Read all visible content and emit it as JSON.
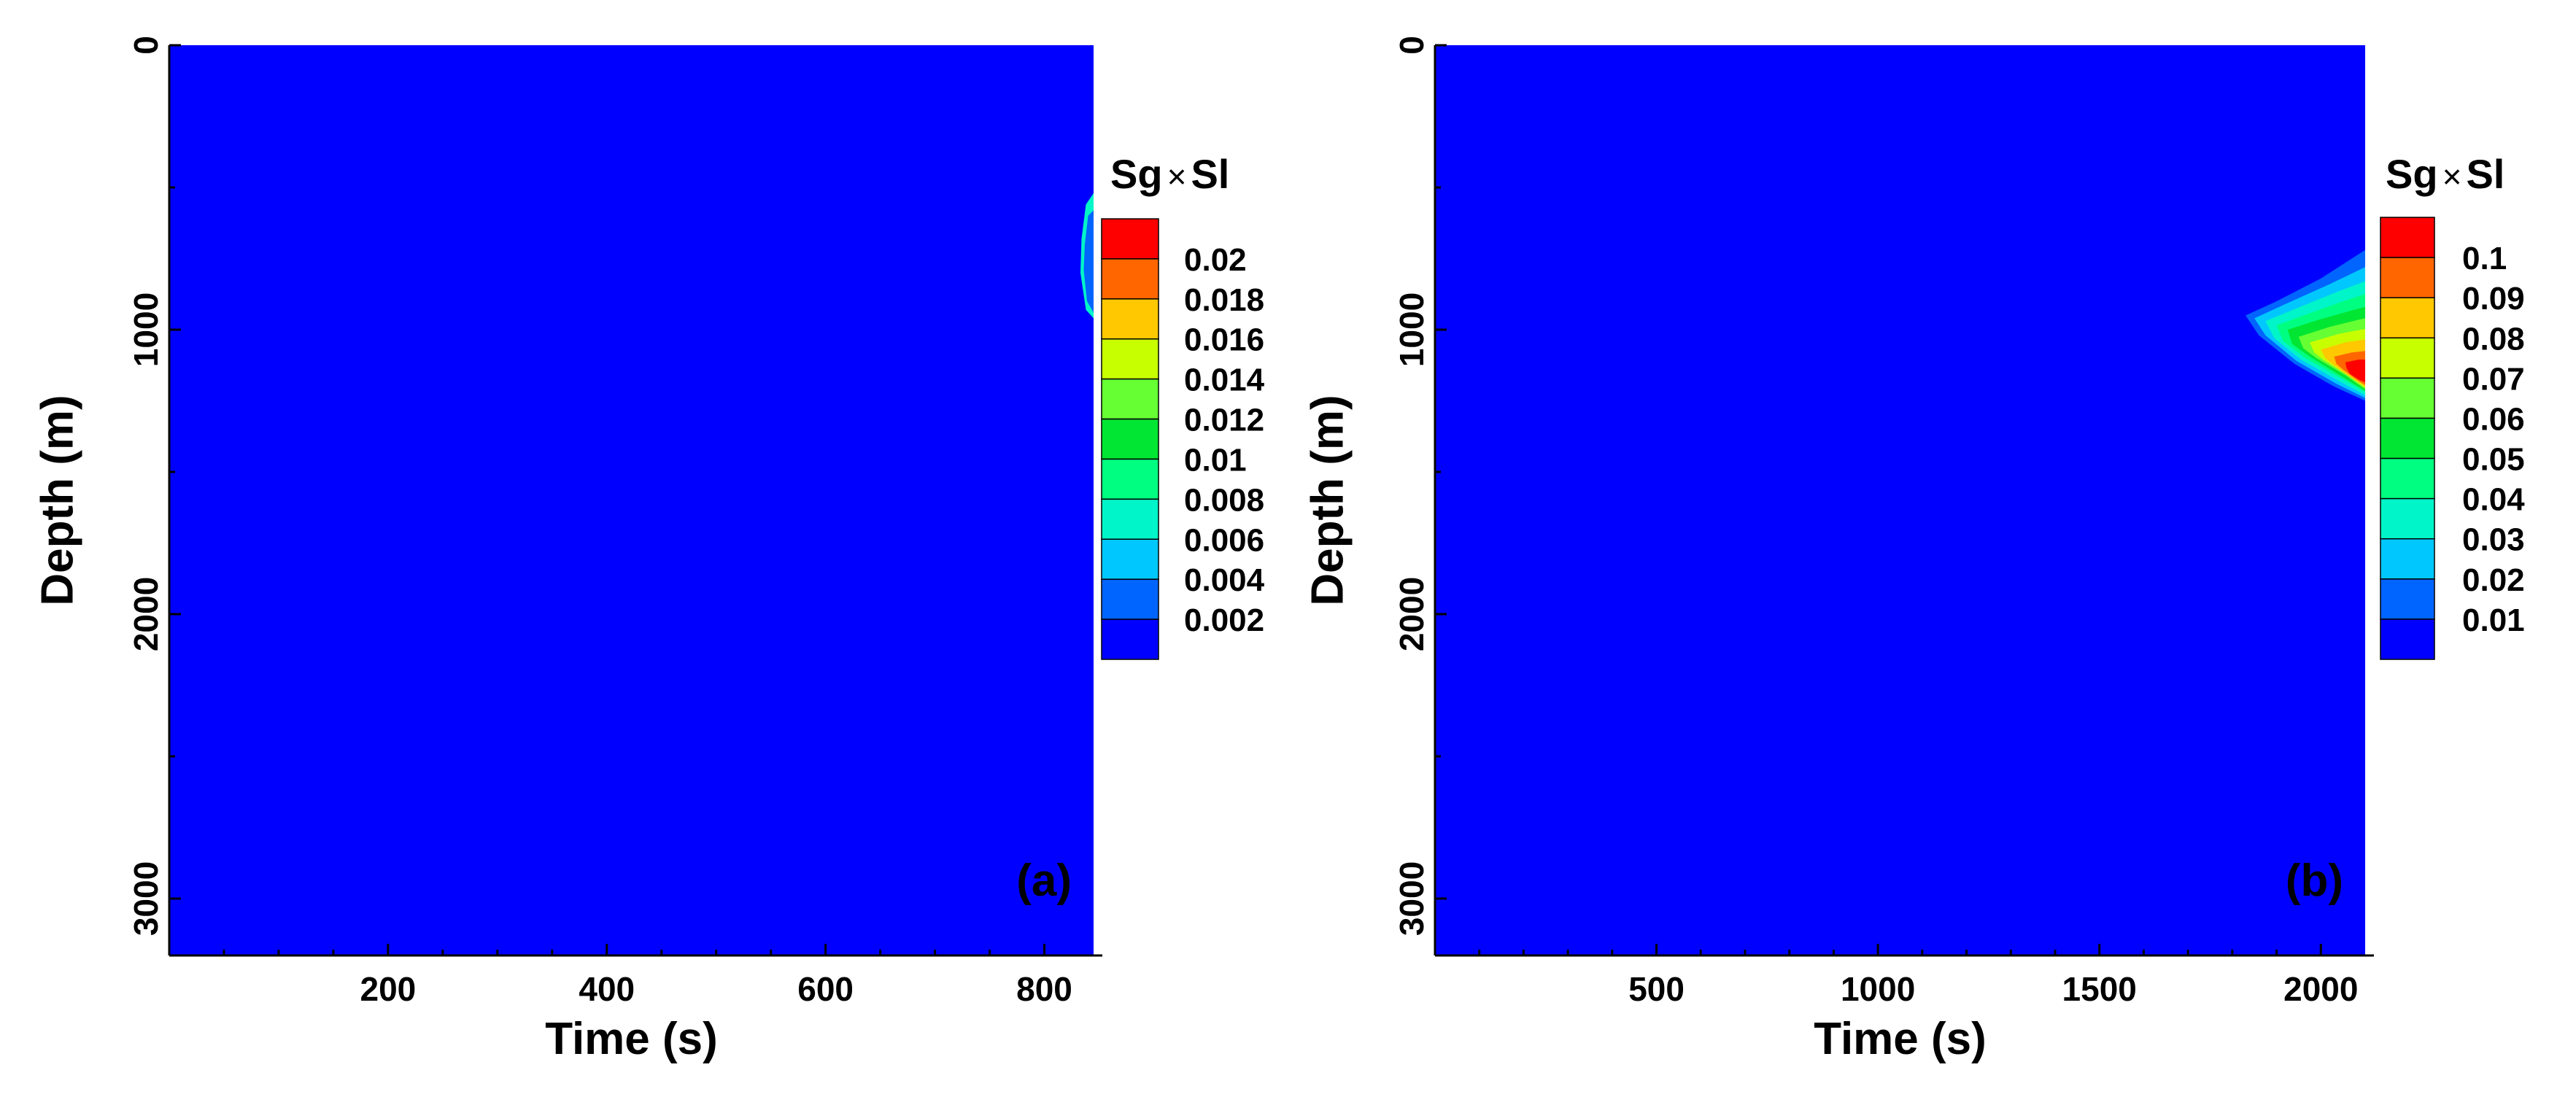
{
  "chart_data": [
    {
      "type": "heatmap",
      "panel_label": "(a)",
      "xlabel": "Time (s)",
      "ylabel": "Depth (m)",
      "xlim": [
        0,
        845
      ],
      "ylim": [
        0,
        3200
      ],
      "y_inverted": true,
      "x_ticks": [
        200,
        400,
        600,
        800
      ],
      "y_ticks": [
        0,
        1000,
        2000,
        3000
      ],
      "background_value": 0,
      "colorbar": {
        "title_parts": [
          "Sg",
          "×",
          "Sl"
        ],
        "levels": [
          "0.02",
          "0.018",
          "0.016",
          "0.014",
          "0.012",
          "0.01",
          "0.008",
          "0.006",
          "0.004",
          "0.002"
        ],
        "colors": [
          "#ff0000",
          "#ff6600",
          "#ffc800",
          "#c8ff00",
          "#66ff33",
          "#00e632",
          "#00ff80",
          "#00f5c8",
          "#00c8ff",
          "#0064ff",
          "#0000ff"
        ]
      },
      "features": [
        {
          "description_value": 0.006,
          "color": "#00f5c8",
          "points": [
            [
              838,
              560
            ],
            [
              845,
              520
            ],
            [
              845,
              960
            ],
            [
              838,
              930
            ],
            [
              833,
              800
            ],
            [
              834,
              680
            ]
          ]
        },
        {
          "description_value": 0.002,
          "color": "#0064ff",
          "points": [
            [
              840,
              600
            ],
            [
              845,
              580
            ],
            [
              845,
              940
            ],
            [
              839,
              900
            ],
            [
              836,
              790
            ],
            [
              837,
              700
            ]
          ]
        }
      ]
    },
    {
      "type": "heatmap",
      "panel_label": "(b)",
      "xlabel": "Time (s)",
      "ylabel": "Depth (m)",
      "xlim": [
        0,
        2100
      ],
      "ylim": [
        0,
        3200
      ],
      "y_inverted": true,
      "x_ticks": [
        500,
        1000,
        1500,
        2000
      ],
      "y_ticks": [
        0,
        1000,
        2000,
        3000
      ],
      "background_value": 0,
      "colorbar": {
        "title_parts": [
          "Sg",
          "×",
          "Sl"
        ],
        "levels": [
          "0.1",
          "0.09",
          "0.08",
          "0.07",
          "0.06",
          "0.05",
          "0.04",
          "0.03",
          "0.02",
          "0.01"
        ],
        "colors": [
          "#ff0000",
          "#ff6600",
          "#ffc800",
          "#c8ff00",
          "#66ff33",
          "#00e632",
          "#00ff80",
          "#00f5c8",
          "#00c8ff",
          "#0064ff",
          "#0000ff"
        ]
      },
      "features": [
        {
          "description_value": 0.01,
          "color": "#0064ff",
          "points": [
            [
              1830,
              950
            ],
            [
              1900,
              900
            ],
            [
              2000,
              820
            ],
            [
              2100,
              720
            ],
            [
              2100,
              1250
            ],
            [
              2030,
              1200
            ],
            [
              1940,
              1120
            ],
            [
              1860,
              1020
            ]
          ]
        },
        {
          "description_value": 0.02,
          "color": "#00c8ff",
          "points": [
            [
              1850,
              960
            ],
            [
              1920,
              910
            ],
            [
              2020,
              840
            ],
            [
              2100,
              780
            ],
            [
              2100,
              1240
            ],
            [
              2035,
              1190
            ],
            [
              1945,
              1110
            ],
            [
              1875,
              1020
            ]
          ]
        },
        {
          "description_value": 0.03,
          "color": "#00f5c8",
          "points": [
            [
              1875,
              970
            ],
            [
              1945,
              925
            ],
            [
              2040,
              865
            ],
            [
              2100,
              830
            ],
            [
              2100,
              1230
            ],
            [
              2040,
              1180
            ],
            [
              1955,
              1105
            ],
            [
              1895,
              1030
            ]
          ]
        },
        {
          "description_value": 0.04,
          "color": "#00ff80",
          "points": [
            [
              1900,
              985
            ],
            [
              1970,
              945
            ],
            [
              2060,
              895
            ],
            [
              2100,
              875
            ],
            [
              2100,
              1220
            ],
            [
              2045,
              1170
            ],
            [
              1965,
              1100
            ],
            [
              1915,
              1040
            ]
          ]
        },
        {
          "description_value": 0.05,
          "color": "#00e632",
          "points": [
            [
              1925,
              1000
            ],
            [
              1995,
              965
            ],
            [
              2075,
              930
            ],
            [
              2100,
              920
            ],
            [
              2100,
              1215
            ],
            [
              2048,
              1165
            ],
            [
              1975,
              1095
            ],
            [
              1935,
              1050
            ]
          ]
        },
        {
          "description_value": 0.06,
          "color": "#66ff33",
          "points": [
            [
              1950,
              1025
            ],
            [
              2020,
              990
            ],
            [
              2085,
              965
            ],
            [
              2100,
              960
            ],
            [
              2100,
              1210
            ],
            [
              2055,
              1160
            ],
            [
              1990,
              1100
            ],
            [
              1960,
              1065
            ]
          ]
        },
        {
          "description_value": 0.07,
          "color": "#c8ff00",
          "points": [
            [
              1975,
              1045
            ],
            [
              2040,
              1015
            ],
            [
              2090,
              1000
            ],
            [
              2100,
              998
            ],
            [
              2100,
              1205
            ],
            [
              2060,
              1160
            ],
            [
              2005,
              1105
            ],
            [
              1985,
              1080
            ]
          ]
        },
        {
          "description_value": 0.08,
          "color": "#ffc800",
          "points": [
            [
              2000,
              1070
            ],
            [
              2055,
              1045
            ],
            [
              2095,
              1035
            ],
            [
              2100,
              1035
            ],
            [
              2100,
              1200
            ],
            [
              2070,
              1170
            ],
            [
              2030,
              1125
            ],
            [
              2010,
              1100
            ]
          ]
        },
        {
          "description_value": 0.09,
          "color": "#ff6600",
          "points": [
            [
              2030,
              1095
            ],
            [
              2070,
              1080
            ],
            [
              2100,
              1075
            ],
            [
              2100,
              1195
            ],
            [
              2080,
              1175
            ],
            [
              2050,
              1140
            ],
            [
              2035,
              1120
            ]
          ]
        },
        {
          "description_value": 0.1,
          "color": "#ff0000",
          "points": [
            [
              2055,
              1115
            ],
            [
              2085,
              1105
            ],
            [
              2100,
              1105
            ],
            [
              2100,
              1185
            ],
            [
              2085,
              1175
            ],
            [
              2065,
              1155
            ],
            [
              2058,
              1135
            ]
          ]
        }
      ]
    }
  ]
}
